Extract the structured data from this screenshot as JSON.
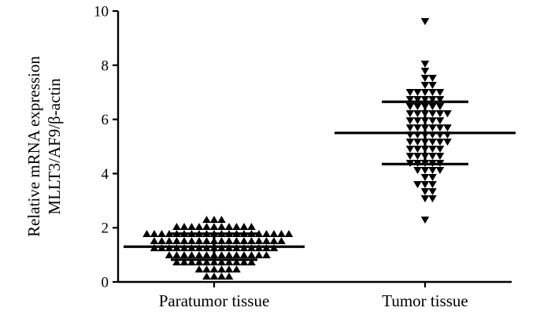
{
  "chart_data": {
    "type": "scatter",
    "title": "",
    "ylabel_lines": [
      "Relative mRNA expression",
      "MLLT3/AF9/β-actin"
    ],
    "ylim": [
      0,
      10
    ],
    "yticks": [
      0,
      2,
      4,
      6,
      8,
      10
    ],
    "categories": [
      "Paratumor tissue",
      "Tumor tissue"
    ],
    "grid": false,
    "legend": "none",
    "series": [
      {
        "category": "Paratumor tissue",
        "marker": "triangle-up",
        "color": "#000000",
        "mean": 1.3,
        "sd_upper": 1.78,
        "sd_lower": 0.82,
        "values": [
          2.35,
          2.25,
          2.2,
          2.15,
          2.15,
          2.1,
          2.1,
          2.05,
          2.05,
          2.0,
          2.0,
          2.0,
          1.95,
          1.95,
          1.9,
          1.9,
          1.9,
          1.85,
          1.85,
          1.85,
          1.8,
          1.8,
          1.8,
          1.8,
          1.75,
          1.75,
          1.75,
          1.7,
          1.7,
          1.7,
          1.7,
          1.65,
          1.65,
          1.65,
          1.6,
          1.6,
          1.6,
          1.6,
          1.55,
          1.55,
          1.55,
          1.5,
          1.5,
          1.5,
          1.5,
          1.45,
          1.45,
          1.45,
          1.4,
          1.4,
          1.4,
          1.4,
          1.35,
          1.35,
          1.35,
          1.3,
          1.3,
          1.3,
          1.3,
          1.25,
          1.25,
          1.25,
          1.2,
          1.2,
          1.2,
          1.2,
          1.15,
          1.15,
          1.15,
          1.1,
          1.1,
          1.1,
          1.05,
          1.05,
          1.05,
          1.0,
          1.0,
          1.0,
          0.95,
          0.95,
          0.9,
          0.9,
          0.9,
          0.85,
          0.85,
          0.8,
          0.8,
          0.75,
          0.75,
          0.7,
          0.7,
          0.65,
          0.6,
          0.6,
          0.55,
          0.5,
          0.5,
          0.45,
          0.4,
          0.35,
          0.3,
          0.25,
          0.2,
          0.15
        ]
      },
      {
        "category": "Tumor tissue",
        "marker": "triangle-down",
        "color": "#000000",
        "mean": 5.5,
        "sd_upper": 6.65,
        "sd_lower": 4.35,
        "values": [
          9.5,
          7.95,
          7.7,
          7.5,
          7.4,
          7.3,
          7.2,
          7.1,
          7.05,
          7.0,
          6.95,
          6.9,
          6.85,
          6.8,
          6.75,
          6.7,
          6.65,
          6.6,
          6.55,
          6.5,
          6.45,
          6.4,
          6.35,
          6.3,
          6.25,
          6.2,
          6.15,
          6.1,
          6.05,
          6.0,
          5.95,
          5.9,
          5.85,
          5.8,
          5.75,
          5.7,
          5.65,
          5.6,
          5.6,
          5.55,
          5.5,
          5.5,
          5.45,
          5.4,
          5.35,
          5.3,
          5.25,
          5.2,
          5.15,
          5.1,
          5.05,
          5.0,
          4.95,
          4.9,
          4.85,
          4.8,
          4.75,
          4.7,
          4.65,
          4.6,
          4.55,
          4.5,
          4.45,
          4.4,
          4.35,
          4.3,
          4.25,
          4.2,
          4.1,
          4.0,
          3.9,
          3.8,
          3.7,
          3.6,
          3.5,
          3.4,
          3.3,
          3.2,
          3.15,
          2.35
        ]
      }
    ]
  }
}
